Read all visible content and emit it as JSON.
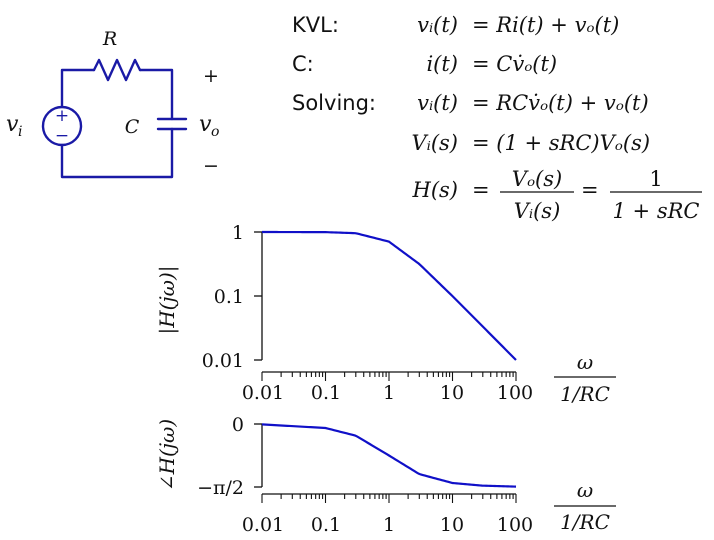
{
  "circuit": {
    "resistor_label": "R",
    "capacitor_label": "C",
    "source_label": "v",
    "source_sub": "i",
    "output_label": "v",
    "output_sub": "o",
    "plus_sign": "+",
    "minus_sign": "−",
    "source_plus": "+",
    "source_minus": "−"
  },
  "equations": {
    "kvl_label": "KVL:",
    "c_label": "C:",
    "solving_label": "Solving:",
    "rows": [
      {
        "lhs": "vᵢ(t)",
        "rhs": "= Ri(t) + vₒ(t)"
      },
      {
        "lhs": "i(t)",
        "rhs": "= Cv̇ₒ(t)"
      },
      {
        "lhs": "vᵢ(t)",
        "rhs": "= RCv̇ₒ(t) + vₒ(t)"
      },
      {
        "lhs": "Vᵢ(s)",
        "rhs": "= (1 + sRC)Vₒ(s)"
      }
    ],
    "transfer": {
      "lhs": "H(s)",
      "eq1": "=",
      "num1": "Vₒ(s)",
      "den1": "Vᵢ(s)",
      "eq2": "=",
      "num2": "1",
      "den2": "1 + sRC"
    }
  },
  "chart_data": [
    {
      "type": "line",
      "ylabel": "|H(jω)|",
      "xscale": "log",
      "yscale": "log",
      "xlim": [
        0.01,
        100
      ],
      "ylim": [
        0.01,
        1
      ],
      "x_ticks": [
        "0.01",
        "0.1",
        "1",
        "10",
        "100"
      ],
      "y_ticks": [
        "1",
        "0.1",
        "0.01"
      ],
      "xunit_num": "ω",
      "xunit_den": "1/RC",
      "series": [
        {
          "x": [
            0.01,
            0.1,
            0.3,
            1,
            3,
            10,
            30,
            100
          ],
          "y": [
            1.0,
            0.995,
            0.958,
            0.707,
            0.316,
            0.0995,
            0.0333,
            0.01
          ]
        }
      ],
      "color": "#1010c8"
    },
    {
      "type": "line",
      "ylabel": "∠H(jω)",
      "xscale": "log",
      "xlim": [
        0.01,
        100
      ],
      "ylim": [
        -1.5708,
        0
      ],
      "x_ticks": [
        "0.01",
        "0.1",
        "1",
        "10",
        "100"
      ],
      "y_ticks": [
        "0",
        "−π/2"
      ],
      "xunit_num": "ω",
      "xunit_den": "1/RC",
      "series": [
        {
          "x": [
            0.01,
            0.1,
            0.3,
            1,
            3,
            10,
            30,
            100
          ],
          "y": [
            -0.01,
            -0.0997,
            -0.2915,
            -0.7854,
            -1.249,
            -1.4711,
            -1.5375,
            -1.5608
          ]
        }
      ],
      "color": "#1010c8"
    }
  ]
}
